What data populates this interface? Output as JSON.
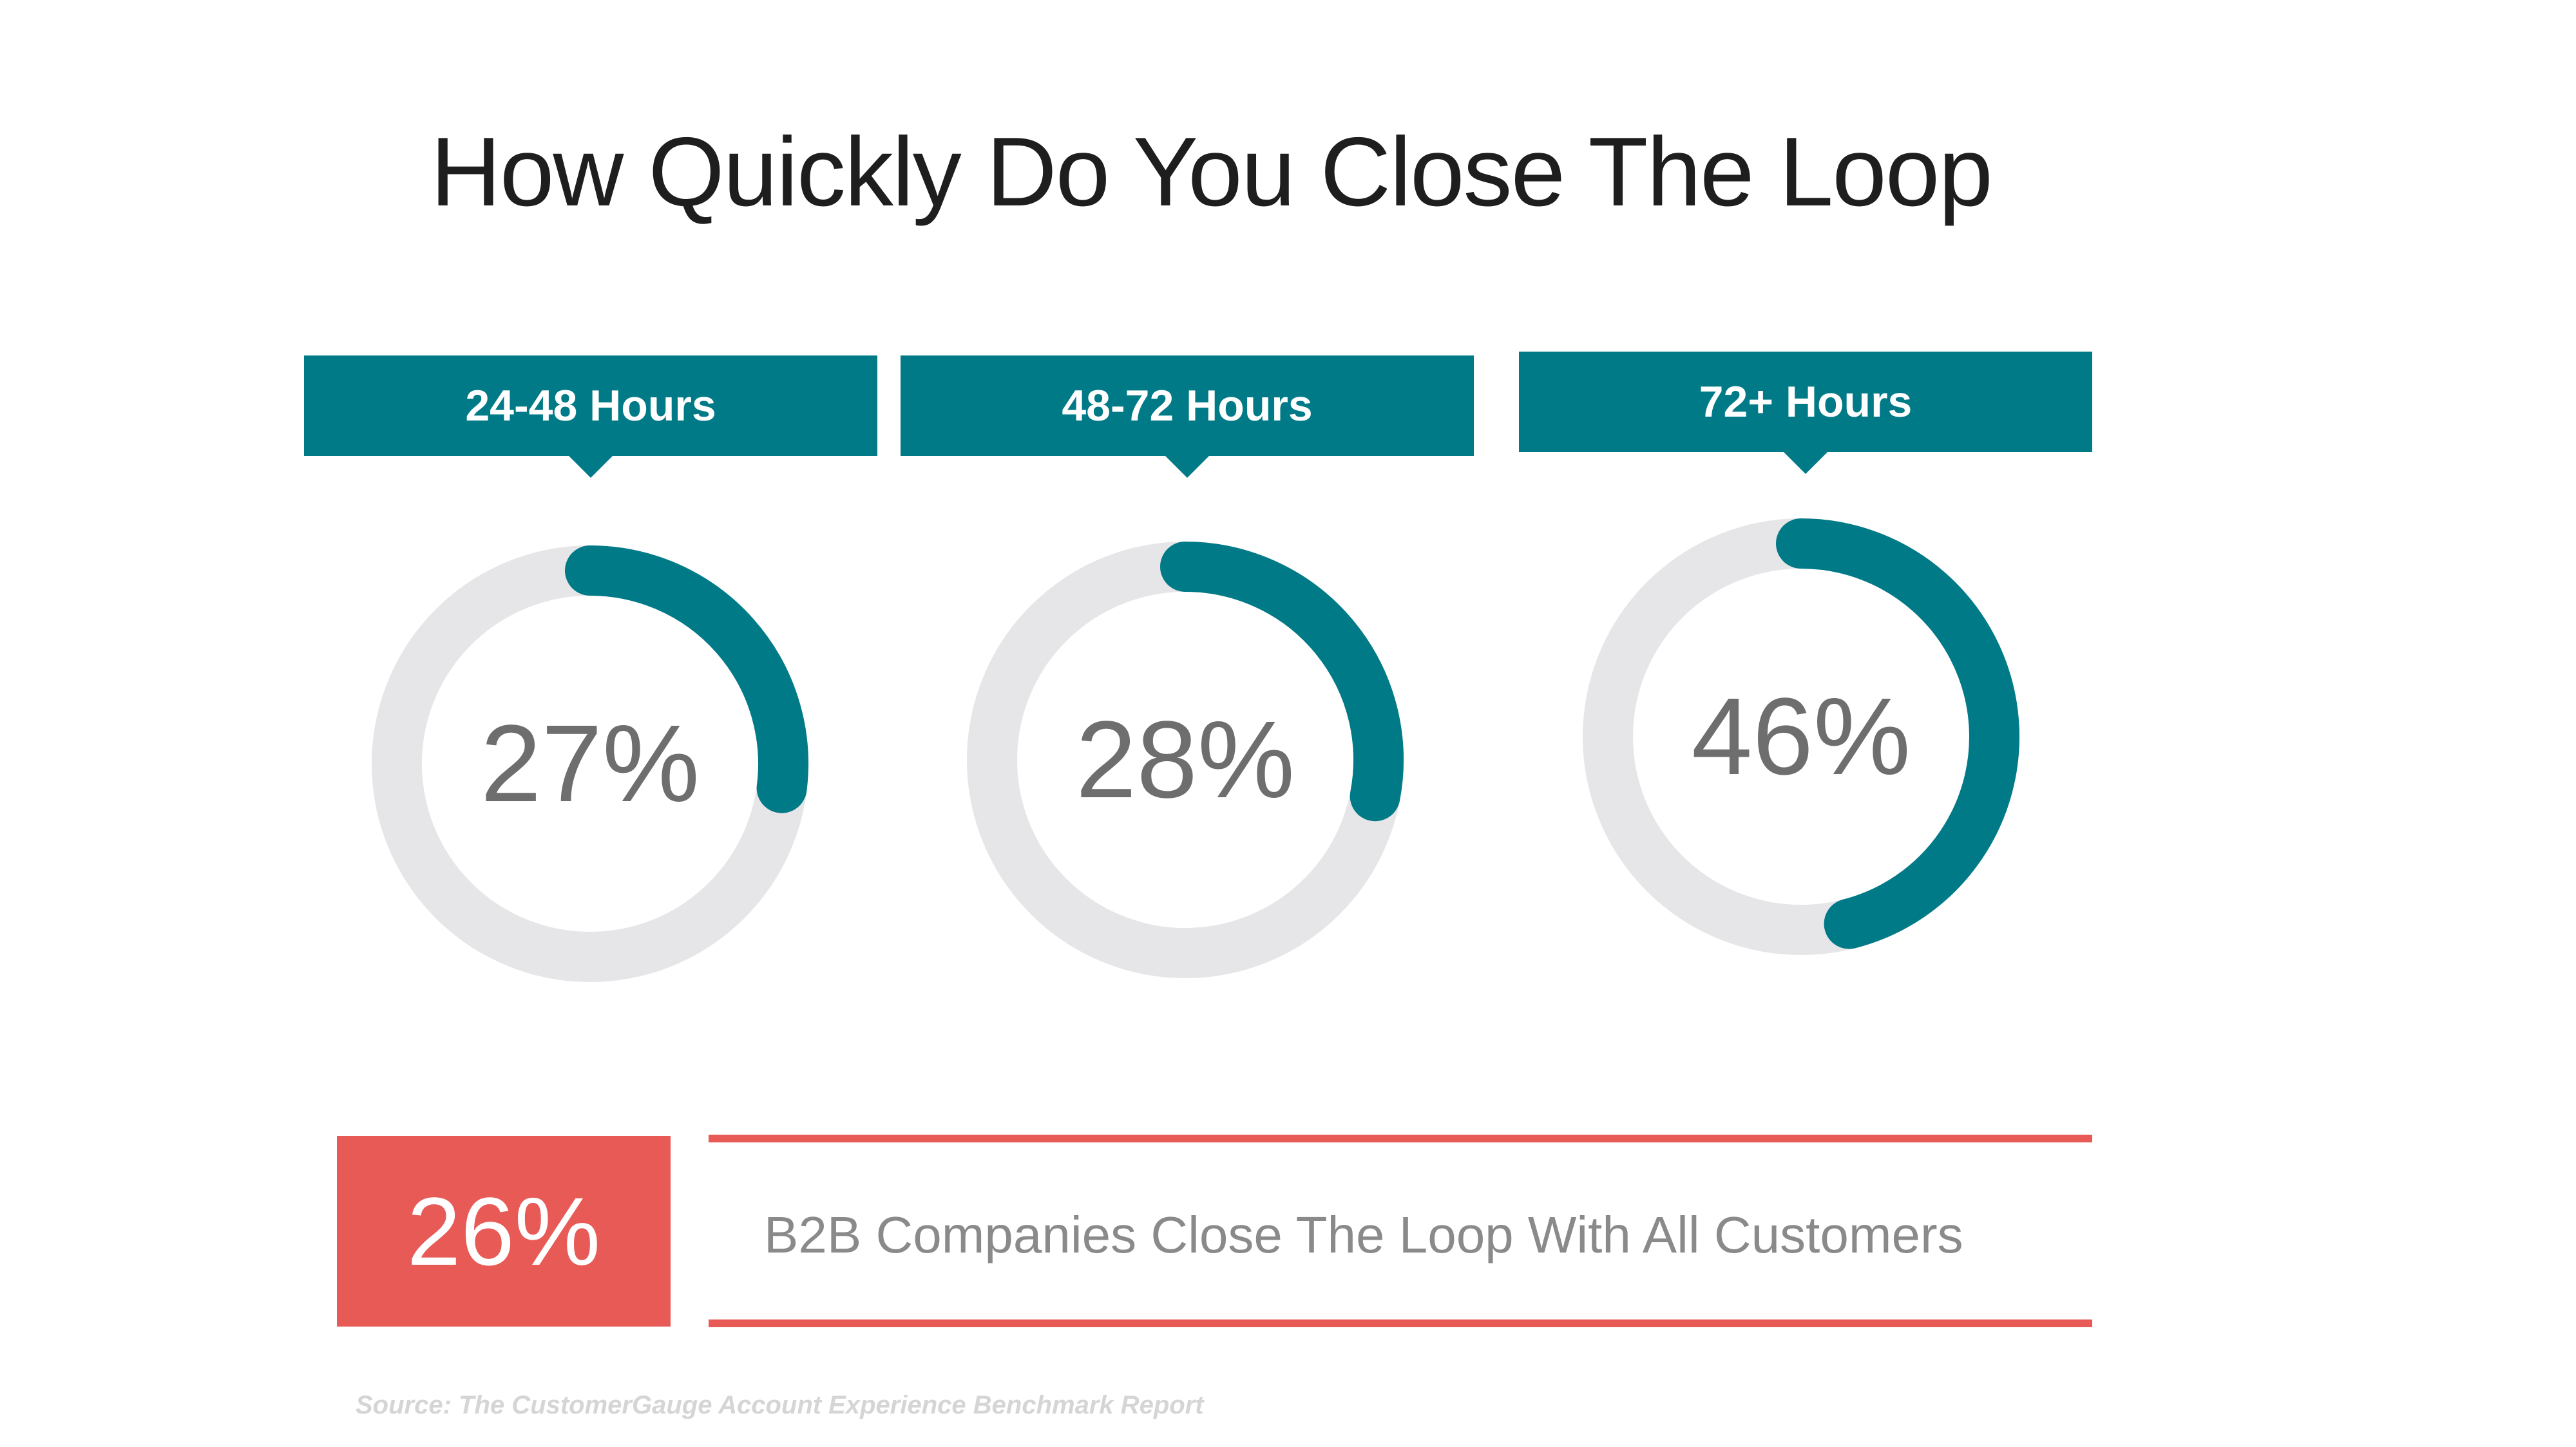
{
  "title": "How Quickly Do You Close The Loop",
  "colors": {
    "accent": "#007a87",
    "track": "#e6e6e8",
    "highlight": "#e85a56",
    "value_text": "#6e6e6e"
  },
  "chart_data": {
    "type": "donut",
    "categories": [
      "24-48 Hours",
      "48-72 Hours",
      "72+ Hours"
    ],
    "values": [
      27,
      28,
      46
    ],
    "value_labels": [
      "27%",
      "28%",
      "46%"
    ],
    "unit": "%",
    "max": 100
  },
  "stat": {
    "value": "26%",
    "text": "B2B Companies Close The Loop With All Customers"
  },
  "source": "Source: The CustomerGauge Account Experience Benchmark Report"
}
